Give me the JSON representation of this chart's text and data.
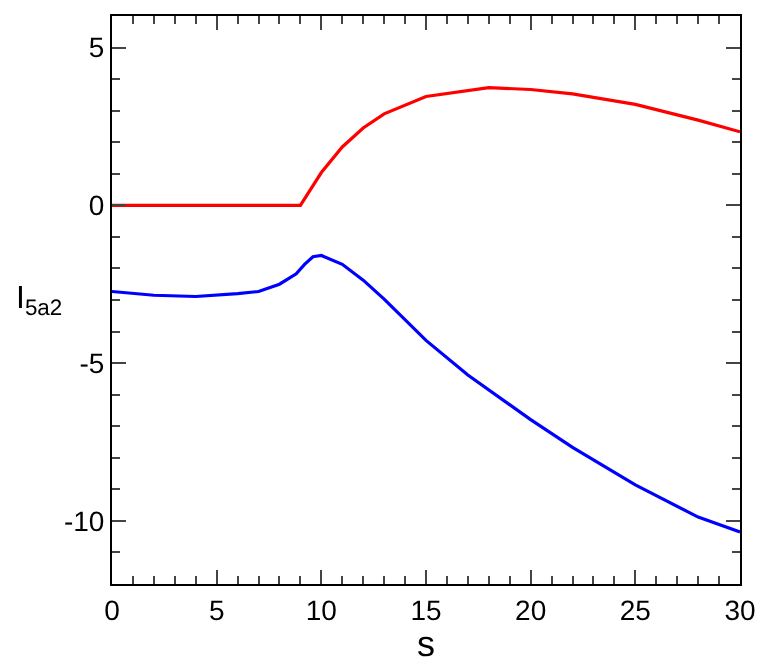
{
  "chart_data": {
    "type": "line",
    "xlabel": "s",
    "ylabel": "I$_{5a2}$",
    "xlim": [
      0,
      30
    ],
    "ylim": [
      -12,
      6
    ],
    "xticks": [
      0,
      5,
      10,
      15,
      20,
      25,
      30
    ],
    "yticks": [
      -10,
      -5,
      0,
      5
    ],
    "grid": false,
    "marker": "none",
    "line_style": "solid",
    "series": [
      {
        "color": "#ff0000",
        "x": [
          0,
          3,
          6,
          9,
          10,
          11,
          12,
          13,
          15,
          18,
          20,
          22,
          25,
          28,
          30
        ],
        "values": [
          0,
          0,
          0,
          0,
          1.04,
          1.85,
          2.45,
          2.9,
          3.45,
          3.73,
          3.67,
          3.53,
          3.2,
          2.7,
          2.33
        ]
      },
      {
        "color": "#0000ff",
        "x": [
          0,
          2,
          4,
          6,
          7,
          8,
          8.8,
          9.2,
          9.6,
          10,
          11,
          12,
          13,
          15,
          17,
          20,
          22,
          25,
          28,
          30
        ],
        "values": [
          -2.73,
          -2.85,
          -2.89,
          -2.8,
          -2.73,
          -2.5,
          -2.17,
          -1.87,
          -1.63,
          -1.59,
          -1.87,
          -2.37,
          -2.97,
          -4.28,
          -5.38,
          -6.79,
          -7.67,
          -8.86,
          -9.88,
          -10.35
        ]
      }
    ]
  }
}
